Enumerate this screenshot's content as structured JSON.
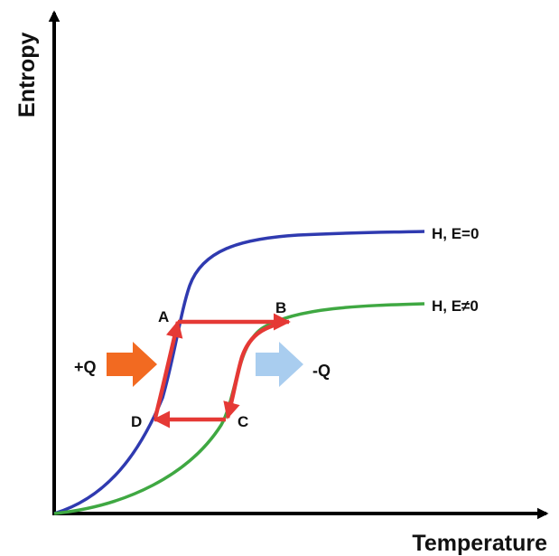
{
  "axes": {
    "ylabel": "Entropy",
    "xlabel": "Temperature"
  },
  "curves": [
    {
      "label": "H, E=0",
      "color": "#2f3ab0"
    },
    {
      "label": "H, E≠0",
      "color": "#3fa842"
    }
  ],
  "cycle": {
    "color": "#e53935",
    "points": [
      "A",
      "B",
      "C",
      "D"
    ]
  },
  "heat_arrows": [
    {
      "label": "+Q",
      "color": "#f26a21",
      "icon": "heat-in-arrow-icon"
    },
    {
      "label": "-Q",
      "color": "#a9cdef",
      "icon": "heat-out-arrow-icon"
    }
  ]
}
